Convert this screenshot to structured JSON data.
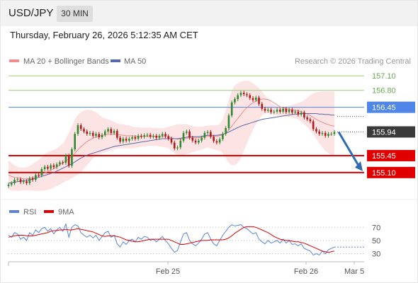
{
  "header": {
    "symbol": "USD/JPY",
    "timeframe": "30 MIN"
  },
  "datetime": "Thursday, February 26, 2026 5:12:35 AM CET",
  "legend": {
    "bb": "MA 20 + Bollinger Bands",
    "ma50": "MA 50",
    "credit": "Research © 2026 Trading Central",
    "rsi": "RSI",
    "rsi_ma": "9MA"
  },
  "colors": {
    "bb": "#f08c8c",
    "band_fill": "#fde4e4",
    "ma50": "#5568a8",
    "rsi": "#5b83d6",
    "rsi_ma": "#e00000",
    "resistance": "#9bcf7c",
    "pivot": "#4f86e8",
    "support": "#e00000",
    "candle_up": "#2f8a2f",
    "candle_down": "#b01a1a",
    "arrow": "#2f6bb4"
  },
  "chart_data": [
    {
      "type": "candlestick",
      "y_range": [
        154.6,
        157.25
      ],
      "x_ticks": [
        "Feb 25",
        "Feb 26",
        "Mar 5"
      ],
      "levels": [
        {
          "label": "157.10",
          "value": 157.1,
          "kind": "resistance"
        },
        {
          "label": "156.80",
          "value": 156.8,
          "kind": "resistance"
        },
        {
          "label": "156.45",
          "value": 156.45,
          "kind": "pivot"
        },
        {
          "label": "155.94",
          "value": 155.94,
          "kind": "current"
        },
        {
          "label": "155.45",
          "value": 155.45,
          "kind": "support"
        },
        {
          "label": "155.10",
          "value": 155.1,
          "kind": "support"
        }
      ],
      "closes": [
        154.85,
        154.88,
        154.95,
        154.96,
        154.9,
        154.92,
        154.88,
        154.98,
        154.95,
        155.05,
        155.04,
        155.17,
        155.22,
        155.18,
        155.25,
        155.21,
        155.27,
        155.31,
        155.3,
        155.45,
        155.24,
        155.58,
        155.9,
        156.08,
        156.0,
        155.95,
        155.9,
        155.92,
        155.86,
        155.9,
        155.83,
        155.88,
        155.95,
        156.0,
        155.92,
        155.96,
        155.82,
        155.74,
        155.8,
        155.76,
        155.8,
        155.83,
        155.8,
        155.86,
        155.84,
        155.87,
        155.88,
        155.84,
        155.86,
        155.82,
        155.86,
        155.9,
        155.85,
        155.8,
        155.72,
        155.6,
        155.62,
        155.76,
        155.92,
        155.95,
        155.82,
        155.76,
        155.72,
        155.76,
        155.82,
        155.92,
        155.94,
        155.84,
        155.75,
        155.72,
        155.79,
        155.9,
        156.02,
        156.28,
        156.55,
        156.62,
        156.7,
        156.75,
        156.72,
        156.7,
        156.64,
        156.6,
        156.65,
        156.52,
        156.42,
        156.38,
        156.4,
        156.35,
        156.36,
        156.4,
        156.36,
        156.42,
        156.35,
        156.4,
        156.34,
        156.36,
        156.3,
        156.34,
        156.24,
        156.2,
        156.16,
        156.0,
        155.95,
        155.9,
        155.92,
        155.86,
        155.9,
        155.9,
        155.94
      ],
      "ma20": [
        155.05,
        155.02,
        155.0,
        154.99,
        154.98,
        154.97,
        154.97,
        154.98,
        154.99,
        155.01,
        155.03,
        155.06,
        155.09,
        155.12,
        155.15,
        155.18,
        155.22,
        155.26,
        155.3,
        155.34,
        155.38,
        155.44,
        155.5,
        155.57,
        155.63,
        155.69,
        155.74,
        155.78,
        155.81,
        155.84,
        155.85,
        155.87,
        155.88,
        155.89,
        155.89,
        155.9,
        155.89,
        155.88,
        155.87,
        155.86,
        155.86,
        155.86,
        155.85,
        155.85,
        155.85,
        155.85,
        155.85,
        155.85,
        155.85,
        155.85,
        155.85,
        155.85,
        155.85,
        155.84,
        155.82,
        155.8,
        155.79,
        155.79,
        155.8,
        155.81,
        155.82,
        155.82,
        155.82,
        155.82,
        155.83,
        155.84,
        155.85,
        155.85,
        155.85,
        155.85,
        155.86,
        155.88,
        155.92,
        155.98,
        156.06,
        156.14,
        156.22,
        156.3,
        156.38,
        156.44,
        156.5,
        156.54,
        156.58,
        156.61,
        156.62,
        156.62,
        156.61,
        156.58,
        156.54,
        156.5,
        156.46,
        156.44,
        156.42,
        156.41,
        156.4,
        156.39,
        156.38,
        156.36,
        156.34,
        156.31,
        156.28,
        156.24,
        156.2,
        156.17,
        156.14,
        156.11,
        156.09,
        156.07,
        156.06
      ],
      "ma50": [
        154.88,
        154.89,
        154.9,
        154.91,
        154.92,
        154.93,
        154.94,
        154.95,
        154.96,
        154.98,
        155.0,
        155.02,
        155.04,
        155.06,
        155.08,
        155.1,
        155.13,
        155.16,
        155.19,
        155.22,
        155.25,
        155.28,
        155.32,
        155.36,
        155.4,
        155.43,
        155.46,
        155.48,
        155.5,
        155.52,
        155.54,
        155.56,
        155.58,
        155.6,
        155.62,
        155.64,
        155.65,
        155.66,
        155.67,
        155.68,
        155.69,
        155.7,
        155.71,
        155.72,
        155.73,
        155.74,
        155.75,
        155.76,
        155.77,
        155.78,
        155.79,
        155.8,
        155.8,
        155.8,
        155.8,
        155.8,
        155.8,
        155.81,
        155.82,
        155.83,
        155.84,
        155.84,
        155.84,
        155.84,
        155.85,
        155.86,
        155.87,
        155.87,
        155.87,
        155.87,
        155.88,
        155.89,
        155.91,
        155.94,
        155.97,
        156.0,
        156.03,
        156.06,
        156.08,
        156.1,
        156.12,
        156.14,
        156.16,
        156.18,
        156.2,
        156.21,
        156.22,
        156.23,
        156.24,
        156.25,
        156.26,
        156.27,
        156.28,
        156.29,
        156.3,
        156.31,
        156.31,
        156.32,
        156.32,
        156.32,
        156.32,
        156.32,
        156.32,
        156.31,
        156.31,
        156.3,
        156.3,
        156.29,
        156.29
      ],
      "bb_upper": [
        155.35,
        155.3,
        155.25,
        155.22,
        155.2,
        155.2,
        155.21,
        155.24,
        155.28,
        155.32,
        155.36,
        155.42,
        155.48,
        155.52,
        155.55,
        155.57,
        155.6,
        155.65,
        155.7,
        155.8,
        155.92,
        156.05,
        156.2,
        156.3,
        156.35,
        156.38,
        156.4,
        156.4,
        156.38,
        156.35,
        156.3,
        156.25,
        156.22,
        156.2,
        156.18,
        156.15,
        156.12,
        156.1,
        156.1,
        156.08,
        156.08,
        156.05,
        156.04,
        156.04,
        156.03,
        156.03,
        156.03,
        156.03,
        156.02,
        156.02,
        156.02,
        156.02,
        156.03,
        156.05,
        156.06,
        156.08,
        156.1,
        156.1,
        156.1,
        156.1,
        156.08,
        156.06,
        156.05,
        156.05,
        156.05,
        156.06,
        156.07,
        156.08,
        156.08,
        156.08,
        156.1,
        156.2,
        156.4,
        156.6,
        156.8,
        156.9,
        156.95,
        156.98,
        157.0,
        157.0,
        156.98,
        156.95,
        156.9,
        156.85,
        156.78,
        156.7,
        156.62,
        156.55,
        156.5,
        156.47,
        156.46,
        156.46,
        156.46,
        156.48,
        156.5,
        156.52,
        156.54,
        156.56,
        156.6,
        156.65,
        156.7,
        156.74,
        156.76,
        156.77,
        156.78,
        156.78,
        156.78,
        156.78,
        156.78
      ],
      "bb_lower": [
        154.75,
        154.73,
        154.72,
        154.72,
        154.72,
        154.73,
        154.73,
        154.73,
        154.72,
        154.72,
        154.72,
        154.72,
        154.73,
        154.74,
        154.76,
        154.79,
        154.82,
        154.85,
        154.89,
        154.92,
        154.95,
        154.98,
        155.02,
        155.05,
        155.1,
        155.18,
        155.25,
        155.32,
        155.4,
        155.45,
        155.48,
        155.5,
        155.52,
        155.54,
        155.56,
        155.58,
        155.59,
        155.6,
        155.6,
        155.6,
        155.6,
        155.6,
        155.61,
        155.62,
        155.63,
        155.64,
        155.65,
        155.65,
        155.65,
        155.65,
        155.64,
        155.63,
        155.62,
        155.6,
        155.55,
        155.5,
        155.46,
        155.45,
        155.46,
        155.48,
        155.5,
        155.52,
        155.54,
        155.56,
        155.58,
        155.6,
        155.62,
        155.6,
        155.58,
        155.56,
        155.55,
        155.5,
        155.4,
        155.3,
        155.25,
        155.25,
        155.3,
        155.4,
        155.55,
        155.7,
        155.85,
        155.98,
        156.1,
        156.2,
        156.28,
        156.32,
        156.33,
        156.32,
        156.3,
        156.28,
        156.27,
        156.26,
        156.26,
        156.25,
        156.24,
        156.22,
        156.2,
        156.15,
        156.1,
        156.04,
        155.98,
        155.9,
        155.8,
        155.7,
        155.62,
        155.55,
        155.5,
        155.46,
        155.43
      ],
      "forecast": {
        "from": 155.94,
        "to": 155.1
      }
    },
    {
      "type": "line",
      "y_levels": [
        30,
        50,
        70
      ],
      "y_range": [
        22,
        80
      ],
      "series": [
        {
          "name": "RSI",
          "values": [
            58,
            55,
            62,
            60,
            52,
            55,
            50,
            62,
            58,
            66,
            62,
            68,
            70,
            64,
            68,
            60,
            66,
            70,
            64,
            75,
            55,
            70,
            74,
            72,
            62,
            58,
            55,
            58,
            54,
            58,
            50,
            56,
            62,
            64,
            55,
            58,
            45,
            40,
            48,
            44,
            50,
            52,
            48,
            55,
            52,
            56,
            55,
            50,
            52,
            48,
            52,
            56,
            50,
            45,
            38,
            32,
            35,
            48,
            60,
            62,
            50,
            45,
            42,
            46,
            52,
            60,
            62,
            52,
            45,
            42,
            50,
            58,
            64,
            70,
            74,
            72,
            73,
            74,
            70,
            68,
            64,
            60,
            62,
            52,
            48,
            45,
            50,
            46,
            48,
            50,
            46,
            52,
            46,
            50,
            44,
            45,
            42,
            45,
            38,
            36,
            34,
            28,
            30,
            28,
            34,
            30,
            36,
            38,
            40
          ]
        },
        {
          "name": "9MA",
          "values": [
            55,
            56,
            57,
            58,
            58,
            58,
            57,
            57,
            57,
            58,
            59,
            60,
            61,
            62,
            64,
            65,
            65,
            66,
            66,
            67,
            66,
            66,
            67,
            68,
            67,
            66,
            65,
            64,
            63,
            61,
            59,
            57,
            56,
            57,
            57,
            57,
            56,
            55,
            53,
            51,
            50,
            49,
            48,
            48,
            49,
            50,
            51,
            52,
            52,
            52,
            52,
            52,
            52,
            52,
            50,
            48,
            46,
            44,
            44,
            45,
            46,
            47,
            48,
            49,
            50,
            50,
            50,
            51,
            51,
            51,
            51,
            51,
            52,
            54,
            57,
            61,
            64,
            67,
            70,
            71,
            71,
            71,
            70,
            68,
            66,
            64,
            62,
            59,
            56,
            54,
            52,
            51,
            50,
            50,
            49,
            48,
            48,
            47,
            46,
            44,
            42,
            40,
            38,
            36,
            34,
            33,
            32,
            33,
            34
          ]
        }
      ],
      "legend_position": "top-left"
    }
  ]
}
